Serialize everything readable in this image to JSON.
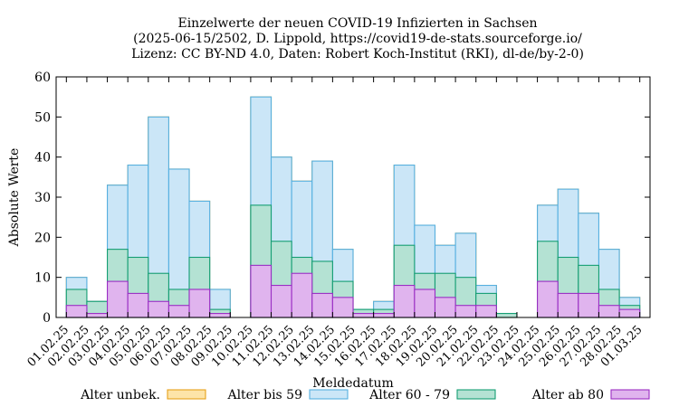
{
  "chart_data": {
    "type": "bar",
    "title": "Einzelwerte der neuen COVID-19 Infizierten in Sachsen",
    "subtitle_1": "(2025-06-15/2502, D. Lippold, https://covid19-de-stats.sourceforge.io/",
    "subtitle_2": "Lizenz: CC BY-ND 4.0, Daten: Robert Koch-Institut (RKI), dl-de/by-2-0)",
    "xlabel": "Meldedatum",
    "ylabel": "Absolute Werte",
    "ylim": [
      0,
      60
    ],
    "yticks": [
      0,
      10,
      20,
      30,
      40,
      50,
      60
    ],
    "grid": false,
    "stacked": true,
    "legend_position": "bottom",
    "categories": [
      "01.02.25",
      "02.02.25",
      "03.02.25",
      "04.02.25",
      "05.02.25",
      "06.02.25",
      "07.02.25",
      "08.02.25",
      "09.02.25",
      "10.02.25",
      "11.02.25",
      "12.02.25",
      "13.02.25",
      "14.02.25",
      "15.02.25",
      "16.02.25",
      "17.02.25",
      "18.02.25",
      "19.02.25",
      "20.02.25",
      "21.02.25",
      "22.02.25",
      "23.02.25",
      "24.02.25",
      "25.02.25",
      "26.02.25",
      "27.02.25",
      "28.02.25",
      "01.03.25"
    ],
    "bins": [
      "01.02.25",
      "02.02.25",
      "03.02.25",
      "04.02.25",
      "05.02.25",
      "06.02.25",
      "07.02.25",
      "08.02.25",
      "09.02.25",
      "10.02.25",
      "11.02.25",
      "12.02.25",
      "13.02.25",
      "14.02.25",
      "15.02.25",
      "16.02.25",
      "17.02.25",
      "18.02.25",
      "19.02.25",
      "20.02.25",
      "21.02.25",
      "22.02.25",
      "23.02.25",
      "24.02.25",
      "25.02.25",
      "26.02.25",
      "27.02.25",
      "28.02.25"
    ],
    "series": [
      {
        "name": "Alter unbek.",
        "fill": "#fde4a8",
        "stroke": "#e6a11a",
        "values": [
          0,
          0,
          0,
          0,
          0,
          0,
          0,
          0,
          0,
          0,
          0,
          0,
          0,
          0,
          0,
          0,
          0,
          0,
          0,
          0,
          0,
          0,
          0,
          0,
          0,
          0,
          0,
          0
        ]
      },
      {
        "name": "Alter bis 59",
        "fill": "#cbe6f7",
        "stroke": "#56b0e0",
        "values": [
          3,
          0,
          16,
          23,
          39,
          30,
          14,
          5,
          0,
          27,
          21,
          19,
          25,
          8,
          0,
          2,
          20,
          12,
          7,
          11,
          2,
          0,
          0,
          9,
          17,
          13,
          10,
          2
        ]
      },
      {
        "name": "Alter 60 - 79",
        "fill": "#b4e2d3",
        "stroke": "#159e73",
        "values": [
          4,
          3,
          8,
          9,
          7,
          4,
          8,
          1,
          0,
          15,
          11,
          4,
          8,
          4,
          1,
          1,
          10,
          4,
          6,
          7,
          3,
          1,
          0,
          10,
          9,
          7,
          4,
          1
        ]
      },
      {
        "name": "Alter ab 80",
        "fill": "#e0b4ee",
        "stroke": "#9a2ec4",
        "values": [
          3,
          1,
          9,
          6,
          4,
          3,
          7,
          1,
          0,
          13,
          8,
          11,
          6,
          5,
          1,
          1,
          8,
          7,
          5,
          3,
          3,
          0,
          0,
          9,
          6,
          6,
          3,
          2
        ]
      }
    ]
  }
}
